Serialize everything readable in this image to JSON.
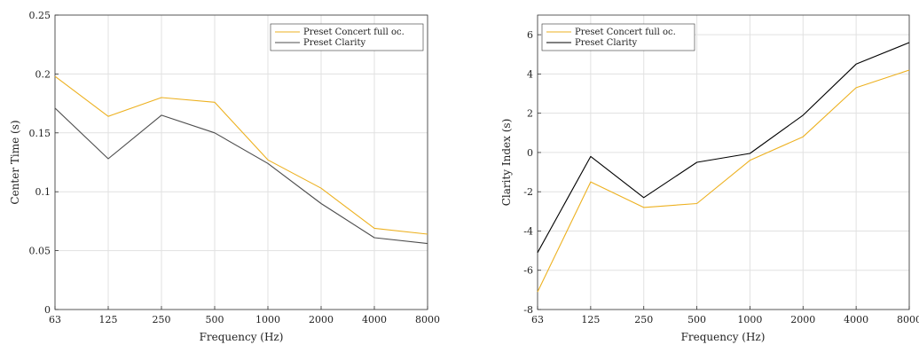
{
  "chart_data": [
    {
      "type": "line",
      "title": "",
      "xlabel": "Frequency (Hz)",
      "ylabel": "Center Time (s)",
      "x": [
        "63",
        "125",
        "250",
        "500",
        "1000",
        "2000",
        "4000",
        "8000"
      ],
      "ylim": [
        0,
        0.25
      ],
      "yticks": [
        "0",
        "0.05",
        "0.1",
        "0.15",
        "0.2",
        "0.25"
      ],
      "grid": true,
      "legend": "top-right",
      "series": [
        {
          "name": "Preset Concert full oc.",
          "color": "#edb120",
          "values": [
            0.198,
            0.164,
            0.18,
            0.176,
            0.127,
            0.103,
            0.069,
            0.064
          ]
        },
        {
          "name": "Preset Clarity",
          "color": "#4d4d4d",
          "values": [
            0.171,
            0.128,
            0.165,
            0.15,
            0.124,
            0.09,
            0.061,
            0.056
          ]
        }
      ]
    },
    {
      "type": "line",
      "title": "",
      "xlabel": "Frequency (Hz)",
      "ylabel": "Clarity Index (s)",
      "x": [
        "63",
        "125",
        "250",
        "500",
        "1000",
        "2000",
        "4000",
        "8000"
      ],
      "ylim": [
        -8,
        7
      ],
      "yticks": [
        "-8",
        "-6",
        "-4",
        "-2",
        "0",
        "2",
        "4",
        "6"
      ],
      "grid": true,
      "legend": "top-left",
      "series": [
        {
          "name": "Preset Concert full oc.",
          "color": "#edb120",
          "values": [
            -7.1,
            -1.5,
            -2.8,
            -2.6,
            -0.4,
            0.8,
            3.3,
            4.2
          ]
        },
        {
          "name": "Preset Clarity",
          "color": "#000000",
          "values": [
            -5.1,
            -0.2,
            -2.3,
            -0.5,
            -0.05,
            1.9,
            4.5,
            5.6
          ]
        }
      ]
    }
  ]
}
